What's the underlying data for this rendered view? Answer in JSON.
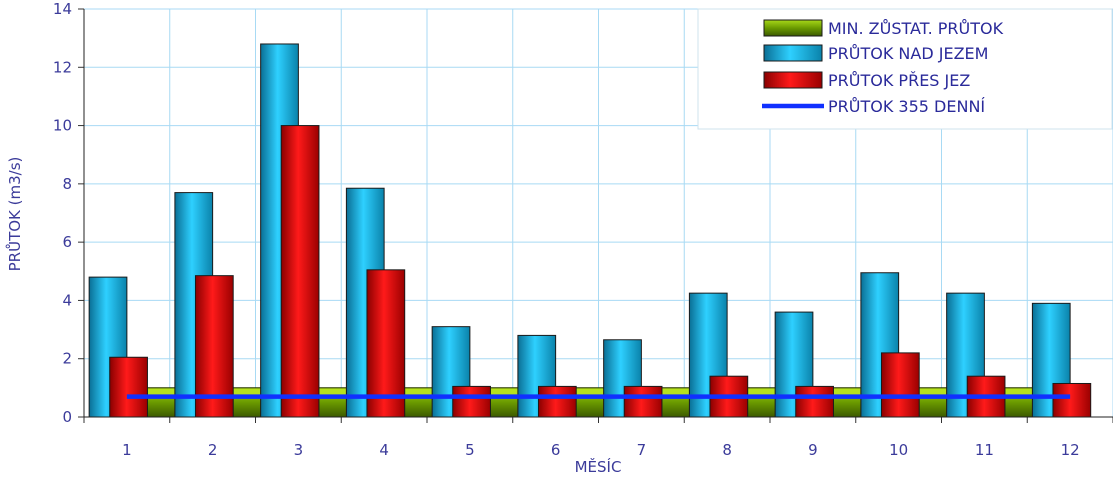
{
  "chart_data": {
    "type": "bar",
    "xlabel": "MĚSÍC",
    "ylabel": "PRŮTOK (m3/s)",
    "categories": [
      "1",
      "2",
      "3",
      "4",
      "5",
      "6",
      "7",
      "8",
      "9",
      "10",
      "11",
      "12"
    ],
    "ylim": [
      0,
      14
    ],
    "yticks": [
      "0",
      "2",
      "4",
      "6",
      "8",
      "10",
      "12",
      "14"
    ],
    "grid": true,
    "legend_position": "top-right",
    "series": [
      {
        "name": "MIN. ZŮSTAT. PRŮTOK",
        "kind": "band",
        "color": "#6a9a00",
        "values": [
          1.0,
          1.0,
          1.0,
          1.0,
          1.0,
          1.0,
          1.0,
          1.0,
          1.0,
          1.0,
          1.0,
          1.0
        ]
      },
      {
        "name": "PRŮTOK NAD JEZEM",
        "kind": "bar",
        "color": "#16b4e6",
        "values": [
          4.8,
          7.7,
          12.8,
          7.85,
          3.1,
          2.8,
          2.65,
          4.25,
          3.6,
          4.95,
          4.25,
          3.9
        ]
      },
      {
        "name": "PRŮTOK PŘES JEZ",
        "kind": "bar",
        "color": "#ee0000",
        "values": [
          2.05,
          4.85,
          10.0,
          5.05,
          1.05,
          1.05,
          1.05,
          1.4,
          1.05,
          2.2,
          1.4,
          1.15
        ]
      },
      {
        "name": "PRŮTOK 355 DENNÍ",
        "kind": "line",
        "color": "#1030ff",
        "values": [
          0.7,
          0.7,
          0.7,
          0.7,
          0.7,
          0.7,
          0.7,
          0.7,
          0.7,
          0.7,
          0.7,
          0.7
        ]
      }
    ]
  }
}
